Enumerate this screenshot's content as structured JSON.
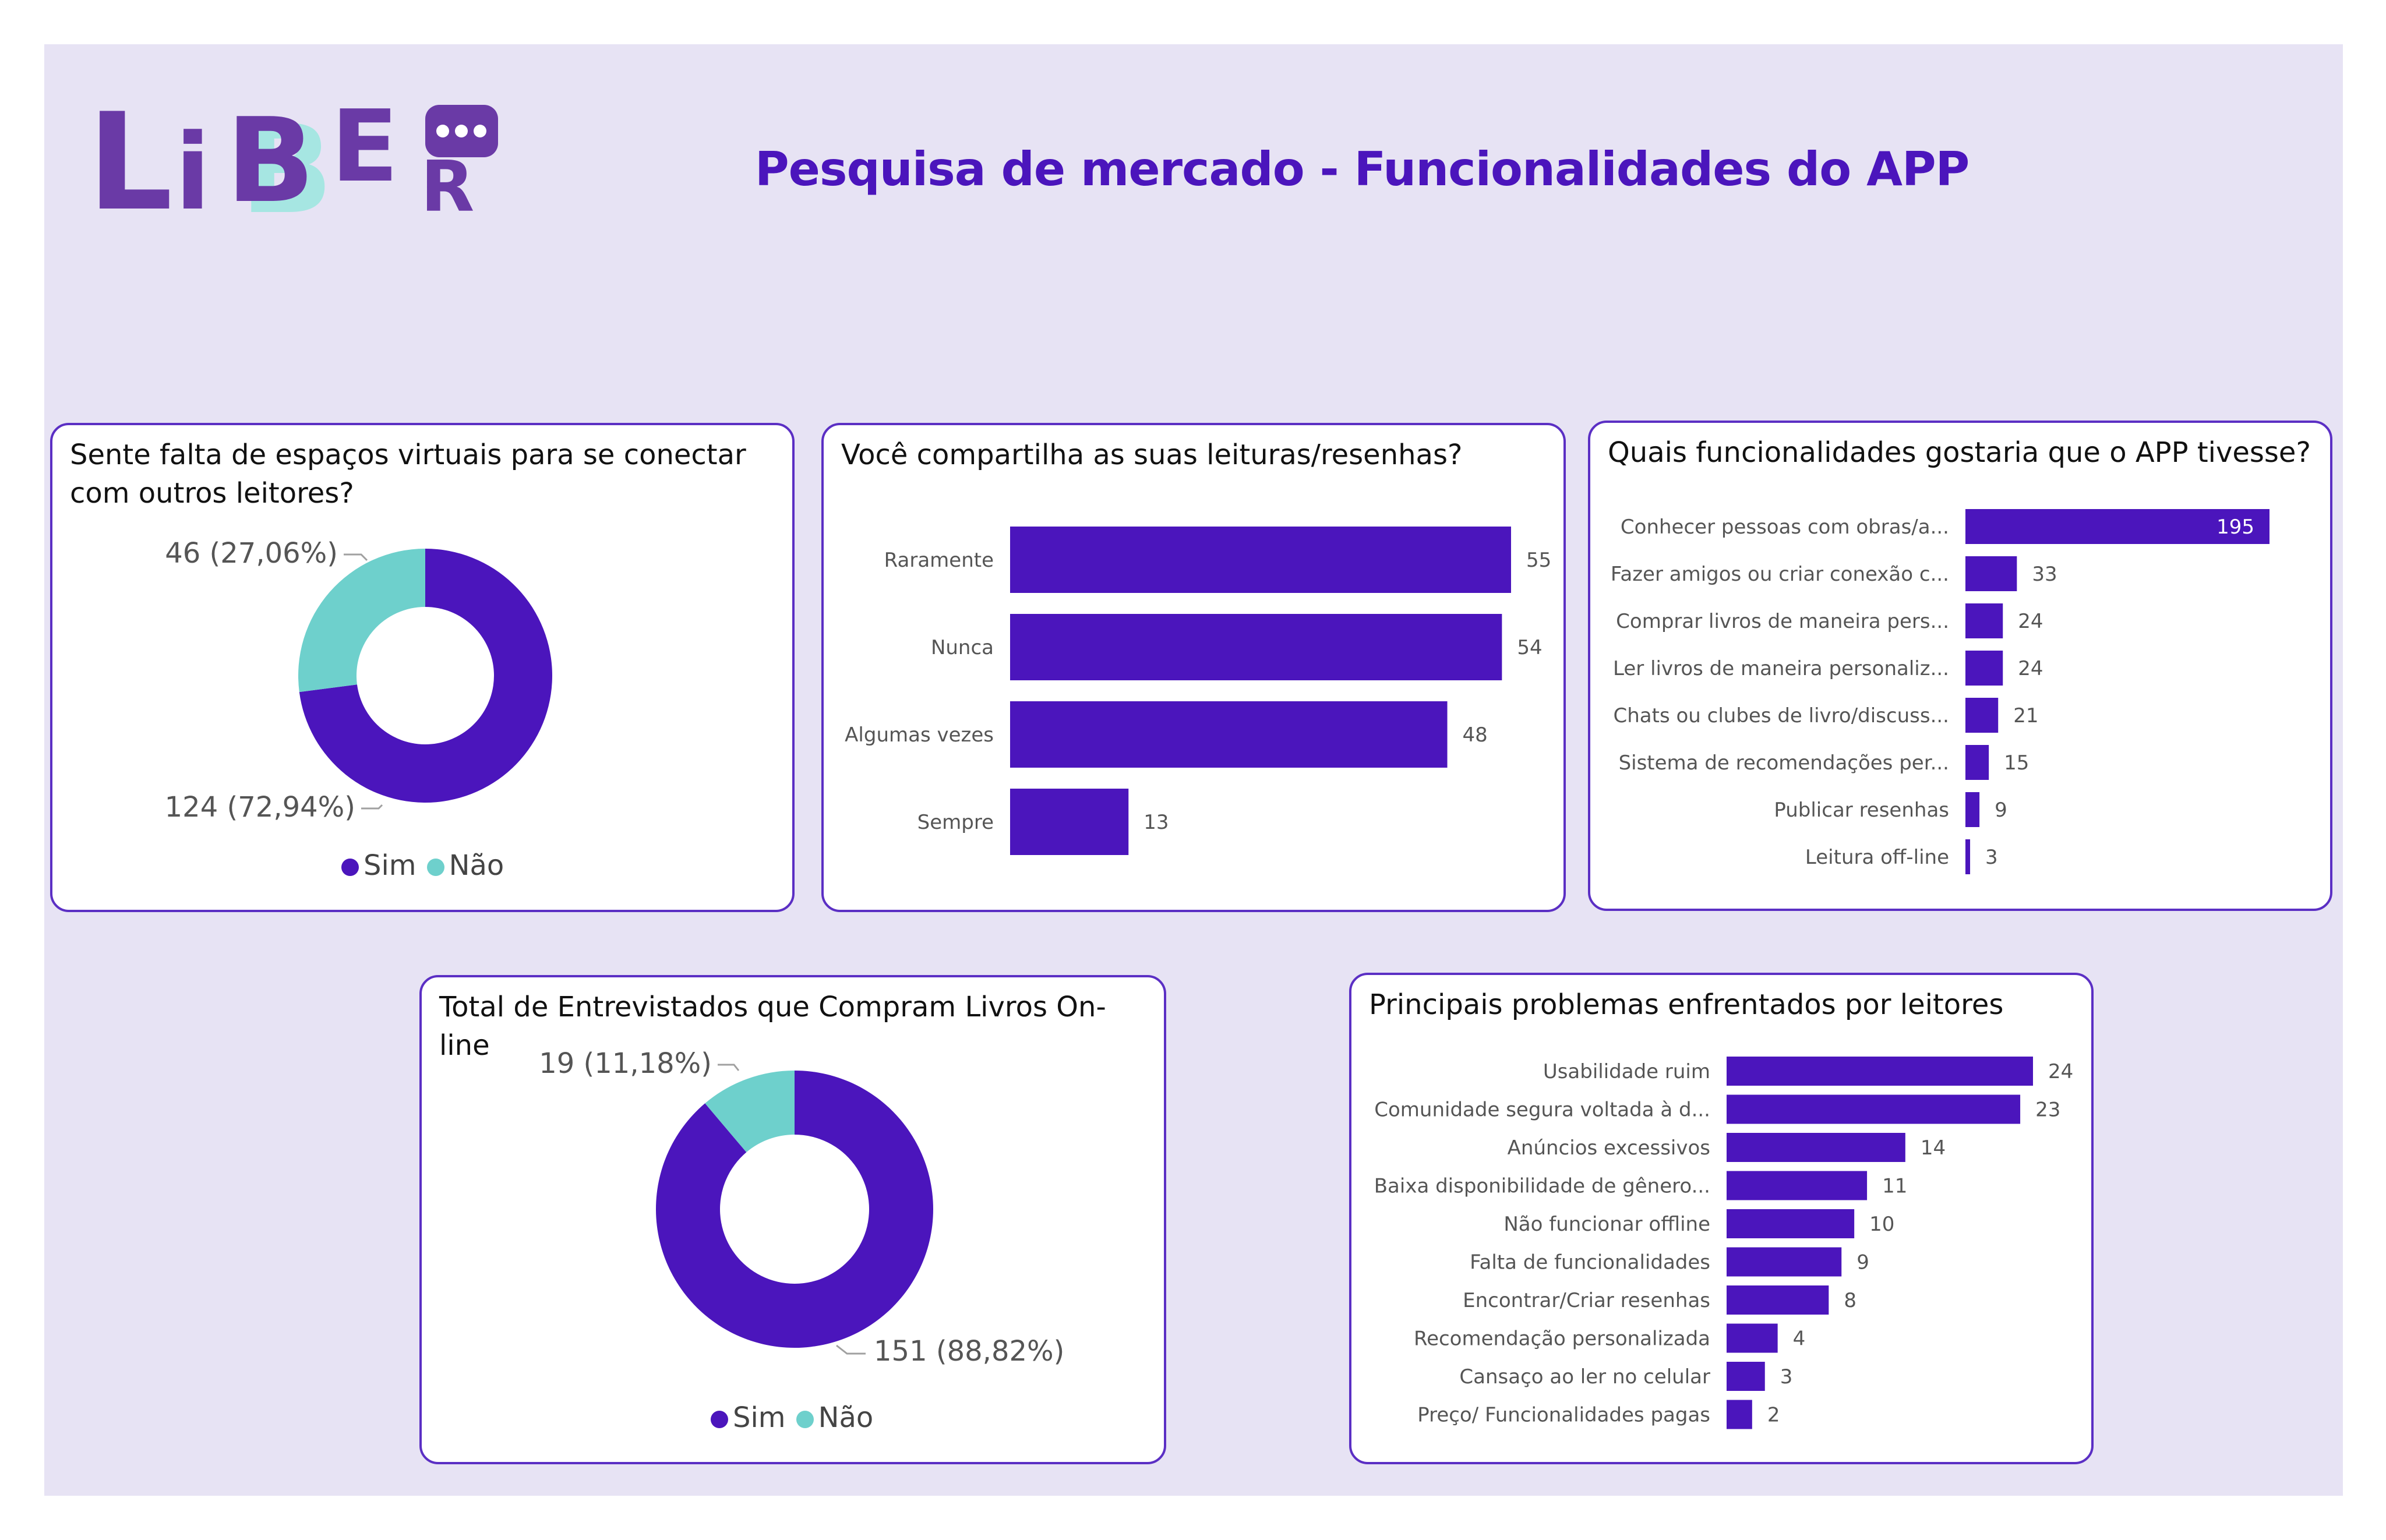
{
  "header": {
    "logo_text": "LIBER",
    "title": "Pesquisa de mercado - Funcionalidades do APP"
  },
  "colors": {
    "primary": "#4b15bc",
    "secondary": "#6ed0cc",
    "background": "#e7e3f4",
    "logo_purple": "#6a3aa6",
    "logo_teal": "#a6e6e2"
  },
  "chart_data": [
    {
      "type": "pie",
      "title": "Sente falta de espaços virtuais para se conectar com outros leitores?",
      "categories": [
        "Sim",
        "Não"
      ],
      "values": [
        124,
        46
      ],
      "labels": [
        "124 (72,94%)",
        "46 (27,06%)"
      ],
      "legend": "bottom-center"
    },
    {
      "type": "bar",
      "orientation": "horizontal",
      "title": "Você compartilha as suas leituras/resenhas?",
      "categories": [
        "Raramente",
        "Nunca",
        "Algumas vezes",
        "Sempre"
      ],
      "values": [
        55,
        54,
        48,
        13
      ],
      "xlim": [
        0,
        55
      ]
    },
    {
      "type": "bar",
      "orientation": "horizontal",
      "title": "Quais funcionalidades gostaria que o APP tivesse?",
      "categories": [
        "Conhecer pessoas com obras/a...",
        "Fazer amigos ou criar conexão c...",
        "Comprar livros de maneira pers...",
        "Ler livros de maneira personaliz...",
        "Chats ou clubes de livro/discuss...",
        "Sistema de recomendações per...",
        "Publicar resenhas",
        "Leitura off-line"
      ],
      "values": [
        195,
        33,
        24,
        24,
        21,
        15,
        9,
        3
      ],
      "xlim": [
        0,
        195
      ]
    },
    {
      "type": "pie",
      "title": "Total de Entrevistados que Compram Livros On-line",
      "categories": [
        "Sim",
        "Não"
      ],
      "values": [
        151,
        19
      ],
      "labels": [
        "151 (88,82%)",
        "19 (11,18%)"
      ],
      "legend": "bottom-center"
    },
    {
      "type": "bar",
      "orientation": "horizontal",
      "title": "Principais problemas enfrentados por leitores",
      "categories": [
        "Usabilidade ruim",
        "Comunidade segura voltada à d...",
        "Anúncios excessivos",
        "Baixa disponibilidade de gênero...",
        "Não funcionar offline",
        "Falta de funcionalidades",
        "Encontrar/Criar resenhas",
        "Recomendação personalizada",
        "Cansaço ao ler no celular",
        "Preço/ Funcionalidades pagas"
      ],
      "values": [
        24,
        23,
        14,
        11,
        10,
        9,
        8,
        4,
        3,
        2
      ],
      "xlim": [
        0,
        24
      ]
    }
  ]
}
